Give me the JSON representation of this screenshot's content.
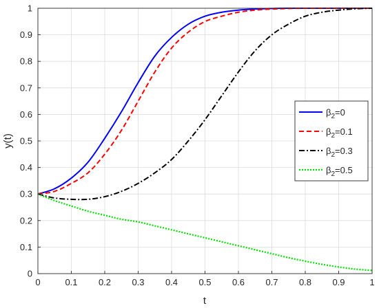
{
  "chart_data": {
    "type": "line",
    "title": "",
    "xlabel": "t",
    "ylabel": "y(t)",
    "xlim": [
      0,
      1
    ],
    "ylim": [
      0,
      1
    ],
    "grid": true,
    "legend_position": "right",
    "xticks": [
      0,
      0.1,
      0.2,
      0.3,
      0.4,
      0.5,
      0.6,
      0.7,
      0.8,
      0.9,
      1
    ],
    "xtick_labels": [
      "0",
      "0.1",
      "0.2",
      "0.3",
      "0.4",
      "0.5",
      "0.6",
      "0.7",
      "0.8",
      "0.9",
      "1"
    ],
    "yticks": [
      0,
      0.1,
      0.2,
      0.3,
      0.4,
      0.5,
      0.6,
      0.7,
      0.8,
      0.9,
      1
    ],
    "ytick_labels": [
      "0",
      "0.1",
      "0.2",
      "0.3",
      "0.4",
      "0.5",
      "0.6",
      "0.7",
      "0.8",
      "0.9",
      "1"
    ],
    "x": [
      0,
      0.05,
      0.1,
      0.15,
      0.2,
      0.25,
      0.3,
      0.35,
      0.4,
      0.45,
      0.5,
      0.55,
      0.6,
      0.65,
      0.7,
      0.75,
      0.8,
      0.85,
      0.9,
      0.95,
      1
    ],
    "series": [
      {
        "name_prefix": "β",
        "name_sub": "2",
        "name_suffix": "=0",
        "color": "#0000ff",
        "style": "solid",
        "values": [
          0.3,
          0.32,
          0.36,
          0.42,
          0.51,
          0.61,
          0.72,
          0.82,
          0.89,
          0.94,
          0.97,
          0.985,
          0.993,
          0.997,
          0.999,
          1.0,
          1.0,
          1.0,
          1.0,
          1.0,
          1.0
        ]
      },
      {
        "name_prefix": "β",
        "name_sub": "2",
        "name_suffix": "=0.1",
        "color": "#ff0000",
        "style": "dashed",
        "values": [
          0.3,
          0.31,
          0.34,
          0.38,
          0.45,
          0.54,
          0.65,
          0.76,
          0.85,
          0.91,
          0.95,
          0.97,
          0.985,
          0.993,
          0.997,
          0.999,
          1.0,
          1.0,
          1.0,
          1.0,
          1.0
        ]
      },
      {
        "name_prefix": "β",
        "name_sub": "2",
        "name_suffix": "=0.3",
        "color": "#000000",
        "style": "dashdot",
        "values": [
          0.3,
          0.285,
          0.28,
          0.28,
          0.29,
          0.31,
          0.34,
          0.38,
          0.43,
          0.5,
          0.58,
          0.67,
          0.76,
          0.84,
          0.9,
          0.94,
          0.97,
          0.985,
          0.993,
          0.998,
          1.0
        ]
      },
      {
        "name_prefix": "β",
        "name_sub": "2",
        "name_suffix": "=0.5",
        "color": "#00dd00",
        "style": "dotted",
        "values": [
          0.3,
          0.275,
          0.255,
          0.235,
          0.22,
          0.205,
          0.195,
          0.18,
          0.165,
          0.15,
          0.135,
          0.12,
          0.105,
          0.09,
          0.075,
          0.06,
          0.047,
          0.035,
          0.025,
          0.017,
          0.012
        ]
      }
    ]
  }
}
